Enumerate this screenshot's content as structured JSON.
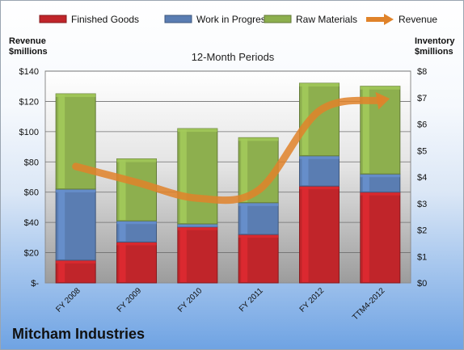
{
  "company": "Mitcham Industries",
  "chart_data": {
    "type": "bar",
    "stacked": true,
    "subtitle": "12-Month Periods",
    "categories": [
      "FY 2008",
      "FY 2009",
      "FY 2010",
      "FY 2011",
      "FY 2012",
      "TTM4-2012"
    ],
    "series": [
      {
        "name": "Finished Goods",
        "axis": "left",
        "color": "#c0252a",
        "values": [
          15,
          27,
          37,
          32,
          64,
          60
        ]
      },
      {
        "name": "Work in Progress",
        "axis": "left",
        "color": "#5a7db2",
        "values": [
          47,
          14,
          2,
          21,
          20,
          12
        ]
      },
      {
        "name": "Raw Materials",
        "axis": "left",
        "color": "#8daf4e",
        "values": [
          63,
          41,
          63,
          43,
          48,
          58
        ]
      }
    ],
    "line_series": {
      "name": "Revenue",
      "axis": "right",
      "color": "#e0832a",
      "values": [
        4.4,
        3.8,
        3.2,
        3.5,
        6.5,
        6.9
      ]
    },
    "left_axis": {
      "title": [
        "Revenue",
        "$millions"
      ],
      "min": 0,
      "max": 140,
      "step": 20,
      "tick_labels": [
        "$-",
        "$20",
        "$40",
        "$60",
        "$80",
        "$100",
        "$120",
        "$140"
      ]
    },
    "right_axis": {
      "title": [
        "Inventory",
        "$millions"
      ],
      "min": 0,
      "max": 8,
      "step": 1,
      "tick_labels": [
        "$0",
        "$1",
        "$2",
        "$3",
        "$4",
        "$5",
        "$6",
        "$7",
        "$8"
      ]
    },
    "legend_position": "top",
    "grid": true
  }
}
